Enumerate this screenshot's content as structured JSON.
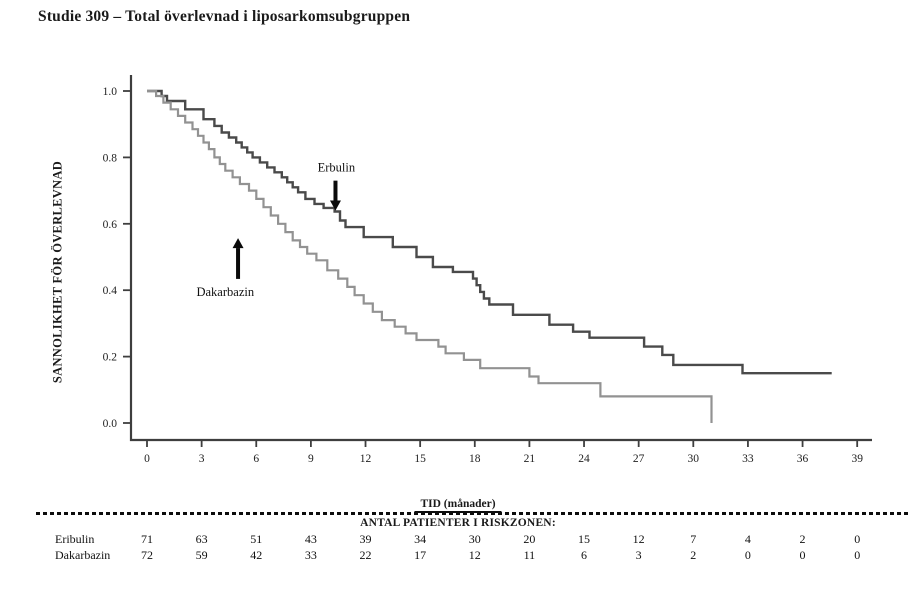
{
  "page": {
    "background": "#ffffff"
  },
  "chart_data": {
    "type": "line",
    "subtype": "kaplan-meier-step",
    "title": "Studie 309 – Total överlevnad i liposarkomsubgruppen",
    "ylabel": "SANNOLIKHET FÖR ÖVERLEVNAD",
    "xlabel": "TID (månader)",
    "xlim": [
      0,
      39
    ],
    "ylim": [
      0.0,
      1.0
    ],
    "x_ticks": [
      0,
      3,
      6,
      9,
      12,
      15,
      18,
      21,
      24,
      27,
      30,
      33,
      36,
      39
    ],
    "y_ticks": [
      0.0,
      0.2,
      0.4,
      0.6,
      0.8,
      1.0
    ],
    "grid": false,
    "legend": "annotated-arrows",
    "axis_color": "#3e3e3e",
    "series": [
      {
        "name": "Erbulin",
        "color": "#4a4a4a",
        "stroke_width": 2.4,
        "end_time": 37.6,
        "steps": [
          [
            0,
            1.0
          ],
          [
            0.8,
            0.985
          ],
          [
            1.1,
            0.97
          ],
          [
            2.1,
            0.945
          ],
          [
            3.1,
            0.915
          ],
          [
            3.7,
            0.895
          ],
          [
            4.1,
            0.875
          ],
          [
            4.5,
            0.86
          ],
          [
            4.9,
            0.845
          ],
          [
            5.2,
            0.83
          ],
          [
            5.5,
            0.815
          ],
          [
            5.8,
            0.8
          ],
          [
            6.2,
            0.785
          ],
          [
            6.6,
            0.77
          ],
          [
            7.0,
            0.755
          ],
          [
            7.4,
            0.74
          ],
          [
            7.7,
            0.725
          ],
          [
            8.0,
            0.71
          ],
          [
            8.3,
            0.695
          ],
          [
            8.7,
            0.675
          ],
          [
            9.2,
            0.66
          ],
          [
            9.7,
            0.648
          ],
          [
            10.3,
            0.637
          ],
          [
            10.6,
            0.61
          ],
          [
            10.9,
            0.59
          ],
          [
            11.9,
            0.56
          ],
          [
            13.5,
            0.53
          ],
          [
            14.8,
            0.5
          ],
          [
            15.7,
            0.47
          ],
          [
            16.8,
            0.455
          ],
          [
            17.9,
            0.435
          ],
          [
            18.1,
            0.415
          ],
          [
            18.3,
            0.395
          ],
          [
            18.5,
            0.375
          ],
          [
            18.8,
            0.357
          ],
          [
            20.1,
            0.326
          ],
          [
            22.1,
            0.296
          ],
          [
            23.4,
            0.275
          ],
          [
            24.3,
            0.257
          ],
          [
            27.3,
            0.23
          ],
          [
            28.3,
            0.205
          ],
          [
            28.9,
            0.175
          ],
          [
            32.7,
            0.15
          ]
        ]
      },
      {
        "name": "Dakarbazin",
        "color": "#929292",
        "stroke_width": 2.2,
        "end_time": 31.0,
        "steps": [
          [
            0,
            1.0
          ],
          [
            0.5,
            0.985
          ],
          [
            0.9,
            0.965
          ],
          [
            1.3,
            0.945
          ],
          [
            1.7,
            0.925
          ],
          [
            2.1,
            0.905
          ],
          [
            2.5,
            0.885
          ],
          [
            2.8,
            0.865
          ],
          [
            3.1,
            0.845
          ],
          [
            3.4,
            0.825
          ],
          [
            3.7,
            0.8
          ],
          [
            4.0,
            0.78
          ],
          [
            4.3,
            0.76
          ],
          [
            4.7,
            0.74
          ],
          [
            5.1,
            0.72
          ],
          [
            5.6,
            0.7
          ],
          [
            6.0,
            0.675
          ],
          [
            6.4,
            0.65
          ],
          [
            6.8,
            0.625
          ],
          [
            7.2,
            0.6
          ],
          [
            7.6,
            0.575
          ],
          [
            8.0,
            0.55
          ],
          [
            8.4,
            0.53
          ],
          [
            8.8,
            0.51
          ],
          [
            9.3,
            0.49
          ],
          [
            9.9,
            0.46
          ],
          [
            10.5,
            0.435
          ],
          [
            11.0,
            0.41
          ],
          [
            11.4,
            0.385
          ],
          [
            11.9,
            0.36
          ],
          [
            12.4,
            0.335
          ],
          [
            12.9,
            0.31
          ],
          [
            13.6,
            0.29
          ],
          [
            14.2,
            0.27
          ],
          [
            14.8,
            0.25
          ],
          [
            16.0,
            0.23
          ],
          [
            16.4,
            0.21
          ],
          [
            17.4,
            0.19
          ],
          [
            18.3,
            0.165
          ],
          [
            21.0,
            0.14
          ],
          [
            21.5,
            0.12
          ],
          [
            24.9,
            0.08
          ],
          [
            31.0,
            0.0
          ]
        ]
      }
    ],
    "annotations": [
      {
        "label": "Erbulin",
        "label_t": 10.4,
        "label_s": 0.77,
        "arrow_t": 10.35,
        "arrow_from_s": 0.73,
        "arrow_to_s": 0.64,
        "direction": "down",
        "arrow_color": "#0a0a0a"
      },
      {
        "label": "Dakarbazin",
        "label_t": 4.3,
        "label_s": 0.395,
        "arrow_t": 5.0,
        "arrow_from_s": 0.434,
        "arrow_to_s": 0.557,
        "direction": "up",
        "arrow_color": "#0a0a0a"
      }
    ]
  },
  "risk_table": {
    "x_axis_label": "TID (månader)",
    "title": "ANTAL PATIENTER I RISKZONEN:",
    "times": [
      0,
      3,
      6,
      9,
      12,
      15,
      18,
      21,
      24,
      27,
      30,
      33,
      36,
      39
    ],
    "rows": [
      {
        "label": "Eribulin",
        "counts": [
          71,
          63,
          51,
          43,
          39,
          34,
          30,
          20,
          15,
          12,
          7,
          4,
          2,
          0
        ]
      },
      {
        "label": "Dakarbazin",
        "counts": [
          72,
          59,
          42,
          33,
          22,
          17,
          12,
          11,
          6,
          3,
          2,
          0,
          0,
          0
        ]
      }
    ]
  }
}
